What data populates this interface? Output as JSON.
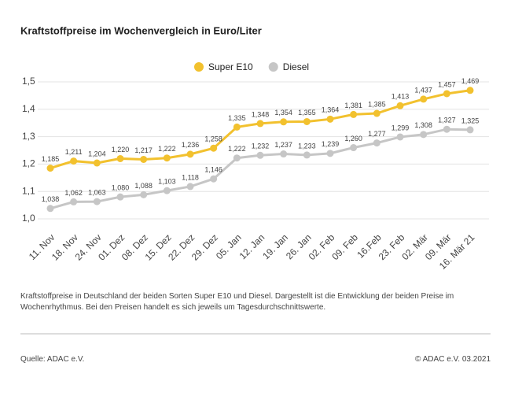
{
  "chart_data": {
    "type": "line",
    "title": "Kraftstoffpreise im Wochenvergleich in Euro/Liter",
    "categories": [
      "11. Nov",
      "18. Nov",
      "24. Nov",
      "01. Dez",
      "08. Dez",
      "15. Dez",
      "22. Dez",
      "29. Dez",
      "05. Jan",
      "12. Jan",
      "19. Jan",
      "26. Jan",
      "02. Feb",
      "09. Feb",
      "16.Feb",
      "23. Feb",
      "02. Mär",
      "09. Mär",
      "16. Mär 21"
    ],
    "series": [
      {
        "name": "Super E10",
        "color": "#f2c12e",
        "values": [
          1.185,
          1.211,
          1.204,
          1.22,
          1.217,
          1.222,
          1.236,
          1.258,
          1.335,
          1.348,
          1.354,
          1.355,
          1.364,
          1.381,
          1.385,
          1.413,
          1.437,
          1.457,
          1.469
        ],
        "value_labels": [
          "1,185",
          "1,211",
          "1,204",
          "1,220",
          "1,217",
          "1,222",
          "1,236",
          "1,258",
          "1,335",
          "1,348",
          "1,354",
          "1,355",
          "1,364",
          "1,381",
          "1,385",
          "1,413",
          "1,437",
          "1,457",
          "1,469"
        ]
      },
      {
        "name": "Diesel",
        "color": "#c6c6c6",
        "values": [
          1.038,
          1.062,
          1.063,
          1.08,
          1.088,
          1.103,
          1.118,
          1.146,
          1.222,
          1.232,
          1.237,
          1.233,
          1.239,
          1.26,
          1.277,
          1.299,
          1.308,
          1.327,
          1.325
        ],
        "value_labels": [
          "1,038",
          "1,062",
          "1,063",
          "1,080",
          "1,088",
          "1,103",
          "1,118",
          "1,146",
          "1,222",
          "1,232",
          "1,237",
          "1,233",
          "1,239",
          "1,260",
          "1,277",
          "1,299",
          "1,308",
          "1,327",
          "1,325"
        ]
      }
    ],
    "ylim": [
      1.0,
      1.5
    ],
    "yticks": [
      {
        "value": 1.0,
        "label": "1,0"
      },
      {
        "value": 1.1,
        "label": "1,1"
      },
      {
        "value": 1.2,
        "label": "1,2"
      },
      {
        "value": 1.3,
        "label": "1,3"
      },
      {
        "value": 1.4,
        "label": "1,4"
      },
      {
        "value": 1.5,
        "label": "1,5"
      }
    ],
    "grid": true,
    "legend": "top"
  },
  "footnote": "Kraftstoffpreise in Deutschland der beiden Sorten Super E10 und Diesel. Dargestellt ist die Entwicklung der beiden Preise im Wochenrhythmus. Bei den Preisen handelt es sich jeweils um Tagesdurchschnittswerte.",
  "source": "Quelle: ADAC e.V.",
  "copyright": "© ADAC e.V. 03.2021"
}
